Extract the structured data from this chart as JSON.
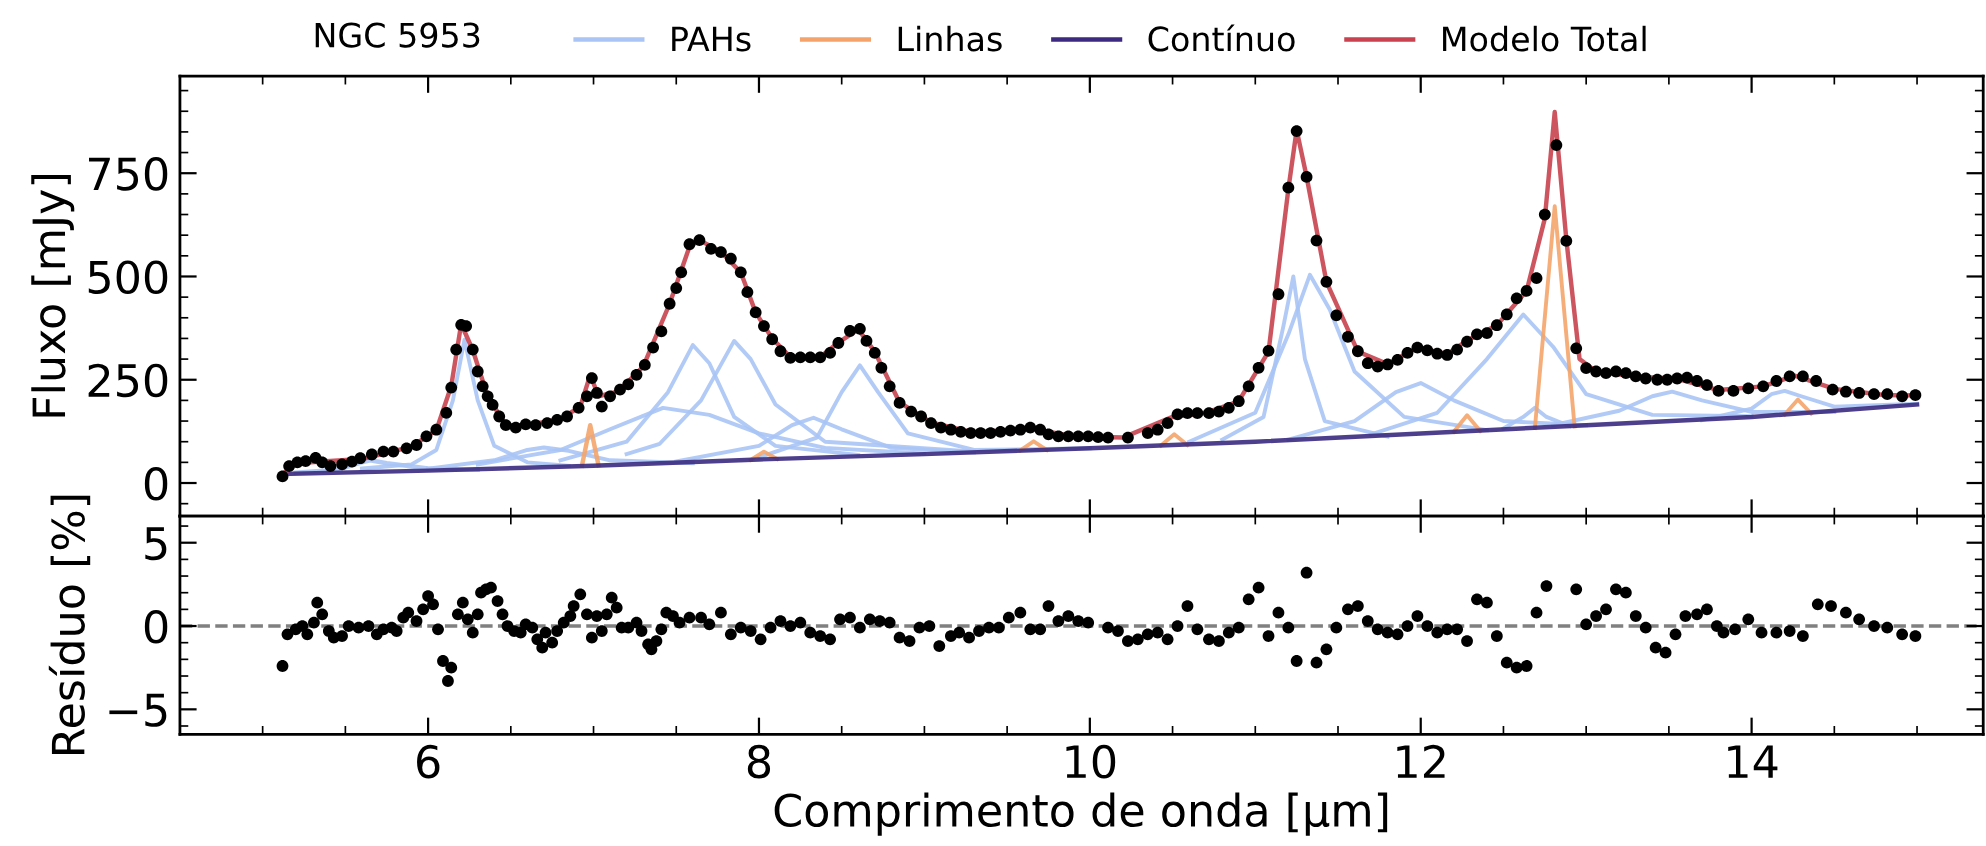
{
  "chart_data": [
    {
      "type": "line",
      "legend": "top",
      "legend_title": "NGC 5953",
      "ylabel": "Fluxo [mJy]",
      "xlim": [
        4.5,
        15.4
      ],
      "ylim": [
        -80,
        985
      ],
      "xticks": [
        6,
        8,
        10,
        12,
        14
      ],
      "yticks": [
        0,
        250,
        500,
        750
      ],
      "tick_labels": "y",
      "series": [
        {
          "name": "PAHs",
          "color": "#a9c4f5",
          "x": [
            5.2,
            5.45,
            5.6,
            5.65,
            5.75,
            6.0,
            6.3
          ],
          "values": [
            25,
            32,
            50,
            55,
            48,
            35,
            32
          ]
        },
        {
          "color": "#a9c4f5",
          "x": [
            5.6,
            5.9,
            6.05,
            6.15,
            6.22,
            6.3,
            6.4,
            6.6,
            6.85
          ],
          "values": [
            35,
            45,
            80,
            200,
            347,
            200,
            90,
            50,
            42
          ]
        },
        {
          "color": "#a9c4f5",
          "x": [
            6.0,
            6.4,
            6.6,
            6.7,
            6.85,
            7.1,
            7.6
          ],
          "values": [
            35,
            55,
            80,
            86,
            78,
            55,
            48
          ]
        },
        {
          "color": "#a9c4f5",
          "x": [
            6.3,
            6.8,
            7.1,
            7.42,
            7.7,
            8.0,
            8.4,
            9.0
          ],
          "values": [
            45,
            80,
            130,
            182,
            165,
            120,
            85,
            71
          ]
        },
        {
          "color": "#a9c4f5",
          "x": [
            6.8,
            7.2,
            7.45,
            7.6,
            7.7,
            7.85,
            8.1,
            8.6
          ],
          "values": [
            55,
            100,
            220,
            334,
            290,
            160,
            90,
            68
          ]
        },
        {
          "color": "#a9c4f5",
          "x": [
            7.2,
            7.4,
            7.65,
            7.85,
            7.95,
            8.1,
            8.4,
            9.3
          ],
          "values": [
            70,
            95,
            200,
            344,
            300,
            190,
            100,
            76
          ]
        },
        {
          "color": "#a9c4f5",
          "x": [
            7.5,
            8.0,
            8.2,
            8.33,
            8.5,
            8.8,
            9.3
          ],
          "values": [
            52,
            90,
            140,
            158,
            130,
            85,
            74
          ]
        },
        {
          "color": "#a9c4f5",
          "x": [
            8.0,
            8.35,
            8.5,
            8.61,
            8.72,
            8.9,
            9.3,
            10.0
          ],
          "values": [
            62,
            110,
            220,
            285,
            220,
            120,
            80,
            84
          ]
        },
        {
          "color": "#a9c4f5",
          "x": [
            10.8,
            11.05,
            11.17,
            11.23,
            11.3,
            11.42,
            11.8
          ],
          "values": [
            105,
            160,
            380,
            500,
            300,
            150,
            112
          ]
        },
        {
          "color": "#a9c4f5",
          "x": [
            10.6,
            11.0,
            11.2,
            11.33,
            11.45,
            11.6,
            11.9,
            12.4
          ],
          "values": [
            100,
            170,
            360,
            504,
            420,
            270,
            160,
            128
          ]
        },
        {
          "color": "#a9c4f5",
          "x": [
            11.2,
            11.6,
            11.85,
            12.0,
            12.2,
            12.5,
            13.0
          ],
          "values": [
            105,
            150,
            220,
            242,
            200,
            150,
            140
          ]
        },
        {
          "color": "#a9c4f5",
          "x": [
            11.7,
            12.1,
            12.4,
            12.62,
            12.8,
            13.0,
            13.4,
            14.0
          ],
          "values": [
            118,
            170,
            300,
            408,
            330,
            215,
            165,
            162
          ]
        },
        {
          "color": "#a9c4f5",
          "x": [
            12.5,
            12.62,
            12.69,
            12.76,
            12.9
          ],
          "values": [
            132,
            160,
            182,
            160,
            138
          ]
        },
        {
          "color": "#a9c4f5",
          "x": [
            12.8,
            13.2,
            13.4,
            13.52,
            13.7,
            14.0,
            14.5
          ],
          "values": [
            140,
            175,
            210,
            221,
            200,
            172,
            172
          ]
        },
        {
          "color": "#a9c4f5",
          "x": [
            13.7,
            14.0,
            14.12,
            14.2,
            14.3,
            14.5,
            15.0
          ],
          "values": [
            152,
            180,
            215,
            223,
            210,
            185,
            192
          ]
        },
        {
          "name": "Linhas",
          "color": "#f4a46a",
          "x": [
            6.93,
            6.98,
            7.03
          ],
          "values": [
            42,
            140,
            43
          ]
        },
        {
          "color": "#f4a46a",
          "x": [
            7.95,
            8.03,
            8.11
          ],
          "values": [
            56,
            76,
            58
          ]
        },
        {
          "color": "#f4a46a",
          "x": [
            9.58,
            9.66,
            9.74
          ],
          "values": [
            79,
            101,
            80
          ]
        },
        {
          "color": "#f4a46a",
          "x": [
            10.43,
            10.51,
            10.59
          ],
          "values": [
            91,
            118,
            92
          ]
        },
        {
          "color": "#f4a46a",
          "x": [
            12.2,
            12.28,
            12.36
          ],
          "values": [
            124,
            164,
            126
          ]
        },
        {
          "color": "#f4a46a",
          "x": [
            12.69,
            12.81,
            12.93
          ],
          "values": [
            133,
            670,
            137
          ]
        },
        {
          "color": "#f4a46a",
          "x": [
            14.2,
            14.28,
            14.36
          ],
          "values": [
            166,
            202,
            168
          ]
        },
        {
          "name": "Contínuo",
          "color": "#3b2a80",
          "x": [
            5.12,
            6,
            7,
            8,
            9,
            10,
            11,
            12,
            13,
            14,
            15
          ],
          "values": [
            22,
            30,
            42,
            57,
            70,
            84,
            100,
            120,
            140,
            160,
            190
          ]
        },
        {
          "name": "Modelo Total",
          "color": "#c8424f",
          "x": [
            5.12,
            5.2,
            5.36,
            5.6,
            5.9,
            6.05,
            6.14,
            6.2,
            6.27,
            6.36,
            6.47,
            6.6,
            6.8,
            6.92,
            6.98,
            7.03,
            7.15,
            7.3,
            7.46,
            7.58,
            7.64,
            7.77,
            7.89,
            7.98,
            8.08,
            8.19,
            8.37,
            8.48,
            8.6,
            8.7,
            8.85,
            9.04,
            9.3,
            9.64,
            9.9,
            10.2,
            10.5,
            10.7,
            10.9,
            11.08,
            11.2,
            11.25,
            11.31,
            11.43,
            11.62,
            11.8,
            11.98,
            12.16,
            12.28,
            12.46,
            12.64,
            12.75,
            12.81,
            12.88,
            12.96,
            13.06,
            13.3,
            13.55,
            13.8,
            14.07,
            14.26,
            14.5,
            14.8,
            14.99
          ],
          "values": [
            20,
            48,
            52,
            58,
            88,
            128,
            235,
            385,
            322,
            210,
            140,
            140,
            155,
            185,
            262,
            210,
            222,
            282,
            434,
            572,
            588,
            560,
            510,
            413,
            350,
            305,
            305,
            340,
            372,
            318,
            195,
            147,
            122,
            133,
            113,
            110,
            160,
            170,
            198,
            318,
            712,
            855,
            742,
            487,
            318,
            288,
            328,
            312,
            345,
            382,
            465,
            640,
            898,
            590,
            300,
            270,
            258,
            252,
            225,
            234,
            260,
            228,
            213,
            212
          ]
        },
        {
          "type": "scatter",
          "marker": "circle",
          "color": "#000000",
          "x": [
            5.12,
            5.16,
            5.21,
            5.26,
            5.32,
            5.36,
            5.41,
            5.48,
            5.54,
            5.59,
            5.66,
            5.73,
            5.79,
            5.87,
            5.93,
            5.99,
            6.05,
            6.11,
            6.14,
            6.17,
            6.2,
            6.23,
            6.27,
            6.3,
            6.33,
            6.36,
            6.39,
            6.43,
            6.47,
            6.53,
            6.59,
            6.65,
            6.72,
            6.78,
            6.84,
            6.91,
            6.96,
            6.99,
            7.02,
            7.05,
            7.1,
            7.16,
            7.21,
            7.26,
            7.31,
            7.36,
            7.41,
            7.46,
            7.5,
            7.53,
            7.58,
            7.64,
            7.71,
            7.77,
            7.83,
            7.89,
            7.93,
            7.98,
            8.03,
            8.08,
            8.13,
            8.19,
            8.25,
            8.31,
            8.37,
            8.43,
            8.48,
            8.55,
            8.61,
            8.65,
            8.7,
            8.74,
            8.79,
            8.85,
            8.92,
            8.98,
            9.04,
            9.1,
            9.16,
            9.22,
            9.28,
            9.34,
            9.4,
            9.46,
            9.52,
            9.58,
            9.64,
            9.7,
            9.75,
            9.81,
            9.87,
            9.93,
            9.99,
            10.05,
            10.11,
            10.23,
            10.35,
            10.41,
            10.47,
            10.53,
            10.59,
            10.65,
            10.72,
            10.78,
            10.84,
            10.9,
            10.96,
            11.02,
            11.08,
            11.14,
            11.2,
            11.25,
            11.31,
            11.37,
            11.43,
            11.49,
            11.56,
            11.62,
            11.68,
            11.74,
            11.8,
            11.86,
            11.92,
            11.98,
            12.04,
            12.1,
            12.16,
            12.22,
            12.28,
            12.34,
            12.4,
            12.46,
            12.52,
            12.58,
            12.64,
            12.7,
            12.75,
            12.82,
            12.88,
            12.94,
            13.0,
            13.06,
            13.12,
            13.18,
            13.24,
            13.3,
            13.36,
            13.43,
            13.49,
            13.55,
            13.61,
            13.67,
            13.73,
            13.8,
            13.89,
            13.98,
            14.07,
            14.15,
            14.23,
            14.31,
            14.39,
            14.49,
            14.57,
            14.65,
            14.74,
            14.82,
            14.91,
            14.99
          ],
          "values": [
            16,
            41,
            50,
            53,
            61,
            50,
            41,
            45,
            52,
            60,
            69,
            76,
            76,
            84,
            92,
            113,
            129,
            170,
            231,
            323,
            383,
            380,
            323,
            270,
            234,
            210,
            189,
            161,
            140,
            134,
            142,
            140,
            145,
            153,
            161,
            182,
            210,
            254,
            218,
            185,
            210,
            226,
            239,
            262,
            286,
            328,
            367,
            434,
            472,
            510,
            578,
            588,
            567,
            559,
            543,
            510,
            462,
            413,
            380,
            348,
            319,
            303,
            304,
            304,
            304,
            315,
            339,
            368,
            373,
            344,
            315,
            279,
            234,
            194,
            173,
            161,
            145,
            134,
            129,
            124,
            121,
            121,
            121,
            124,
            127,
            129,
            134,
            129,
            118,
            113,
            113,
            113,
            113,
            111,
            110,
            110,
            121,
            129,
            145,
            166,
            169,
            169,
            169,
            173,
            182,
            198,
            234,
            279,
            320,
            457,
            715,
            852,
            741,
            587,
            487,
            406,
            354,
            319,
            290,
            282,
            287,
            298,
            315,
            328,
            321,
            313,
            310,
            323,
            342,
            360,
            363,
            382,
            408,
            447,
            465,
            496,
            650,
            818,
            586,
            326,
            278,
            270,
            266,
            270,
            266,
            258,
            253,
            250,
            250,
            253,
            255,
            247,
            237,
            223,
            223,
            229,
            234,
            247,
            258,
            258,
            247,
            226,
            221,
            218,
            215,
            215,
            210,
            213
          ]
        }
      ]
    },
    {
      "type": "scatter",
      "marker": "circle",
      "xlabel": "Comprimento de onda [μm]",
      "ylabel": "Resíduo [%]",
      "xlim": [
        4.5,
        15.4
      ],
      "ylim": [
        -6.5,
        6.6
      ],
      "xticks": [
        6,
        8,
        10,
        12,
        14
      ],
      "yticks": [
        {
          "value": -5,
          "label": "−5"
        },
        0,
        5
      ],
      "ref_lines": [
        {
          "axis": "y",
          "value": 0,
          "color": "#808080",
          "line_style": "dashed"
        }
      ],
      "series": [
        {
          "color": "#000000",
          "x": [
            5.12,
            5.15,
            5.2,
            5.24,
            5.27,
            5.31,
            5.33,
            5.36,
            5.4,
            5.43,
            5.48,
            5.52,
            5.58,
            5.64,
            5.69,
            5.73,
            5.78,
            5.81,
            5.85,
            5.88,
            5.93,
            5.97,
            6.0,
            6.03,
            6.06,
            6.09,
            6.12,
            6.14,
            6.18,
            6.21,
            6.24,
            6.27,
            6.3,
            6.32,
            6.35,
            6.38,
            6.42,
            6.45,
            6.48,
            6.52,
            6.56,
            6.59,
            6.63,
            6.66,
            6.69,
            6.71,
            6.75,
            6.78,
            6.82,
            6.86,
            6.88,
            6.92,
            6.96,
            6.99,
            7.02,
            7.05,
            7.08,
            7.11,
            7.14,
            7.17,
            7.21,
            7.26,
            7.29,
            7.33,
            7.35,
            7.38,
            7.41,
            7.44,
            7.48,
            7.52,
            7.58,
            7.65,
            7.7,
            7.77,
            7.83,
            7.89,
            7.95,
            8.01,
            8.07,
            8.13,
            8.19,
            8.25,
            8.31,
            8.37,
            8.43,
            8.49,
            8.55,
            8.61,
            8.67,
            8.73,
            8.79,
            8.85,
            8.91,
            8.97,
            9.03,
            9.09,
            9.16,
            9.21,
            9.27,
            9.33,
            9.39,
            9.45,
            9.51,
            9.58,
            9.64,
            9.7,
            9.75,
            9.81,
            9.87,
            9.93,
            9.99,
            10.11,
            10.17,
            10.23,
            10.29,
            10.35,
            10.41,
            10.47,
            10.53,
            10.59,
            10.65,
            10.72,
            10.78,
            10.84,
            10.9,
            10.96,
            11.02,
            11.08,
            11.14,
            11.2,
            11.25,
            11.31,
            11.37,
            11.43,
            11.49,
            11.56,
            11.62,
            11.68,
            11.74,
            11.8,
            11.86,
            11.92,
            11.98,
            12.04,
            12.1,
            12.16,
            12.22,
            12.28,
            12.34,
            12.4,
            12.46,
            12.52,
            12.58,
            12.64,
            12.7,
            12.76,
            12.94,
            13.0,
            13.06,
            13.12,
            13.18,
            13.24,
            13.3,
            13.36,
            13.42,
            13.48,
            13.54,
            13.6,
            13.67,
            13.73,
            13.79,
            13.83,
            13.9,
            13.98,
            14.06,
            14.15,
            14.23,
            14.31,
            14.4,
            14.48,
            14.57,
            14.65,
            14.74,
            14.82,
            14.91,
            14.99
          ],
          "values": [
            -2.4,
            -0.5,
            -0.2,
            0.0,
            -0.5,
            0.2,
            1.4,
            0.7,
            -0.3,
            -0.7,
            -0.6,
            0.0,
            -0.1,
            0.0,
            -0.5,
            -0.2,
            -0.1,
            -0.3,
            0.5,
            0.8,
            0.3,
            1.0,
            1.8,
            1.3,
            -0.2,
            -2.1,
            -3.3,
            -2.5,
            0.7,
            1.4,
            0.4,
            -0.4,
            0.7,
            2.0,
            2.2,
            2.3,
            1.5,
            0.7,
            0.0,
            -0.3,
            -0.4,
            0.1,
            -0.1,
            -0.8,
            -1.3,
            -0.4,
            -1.0,
            -0.3,
            0.2,
            0.6,
            1.2,
            1.9,
            0.7,
            -0.7,
            0.6,
            -0.3,
            0.7,
            1.7,
            1.1,
            -0.1,
            -0.1,
            0.2,
            -0.3,
            -1.1,
            -1.4,
            -0.9,
            -0.2,
            0.8,
            0.6,
            0.2,
            0.5,
            0.5,
            0.1,
            0.8,
            -0.5,
            -0.1,
            -0.3,
            -0.8,
            -0.1,
            0.3,
            0.0,
            0.2,
            -0.4,
            -0.6,
            -0.8,
            0.4,
            0.5,
            -0.1,
            0.4,
            0.3,
            0.2,
            -0.7,
            -0.9,
            -0.1,
            0.0,
            -1.2,
            -0.6,
            -0.4,
            -0.7,
            -0.3,
            -0.1,
            -0.1,
            0.5,
            0.8,
            -0.2,
            -0.2,
            1.2,
            0.3,
            0.6,
            0.3,
            0.2,
            -0.1,
            -0.3,
            -0.9,
            -0.8,
            -0.5,
            -0.4,
            -0.8,
            0.0,
            1.2,
            -0.2,
            -0.8,
            -0.9,
            -0.4,
            -0.1,
            1.6,
            2.3,
            -0.6,
            0.8,
            -0.1,
            -2.1,
            3.2,
            -2.2,
            -1.4,
            -0.1,
            1.0,
            1.2,
            0.3,
            -0.2,
            -0.4,
            -0.5,
            0.0,
            0.6,
            0.0,
            -0.4,
            -0.2,
            -0.2,
            -0.9,
            1.6,
            1.4,
            -0.6,
            -2.2,
            -2.5,
            -2.4,
            0.8,
            2.4,
            2.2,
            0.1,
            0.6,
            1.0,
            2.2,
            2.0,
            0.6,
            -0.1,
            -1.3,
            -1.6,
            -0.5,
            0.6,
            0.7,
            1.0,
            0.0,
            -0.4,
            -0.2,
            0.4,
            -0.4,
            -0.4,
            -0.3,
            -0.6,
            1.3,
            1.2,
            0.8,
            0.4,
            0.0,
            -0.1,
            -0.5,
            -0.6
          ]
        }
      ]
    }
  ]
}
